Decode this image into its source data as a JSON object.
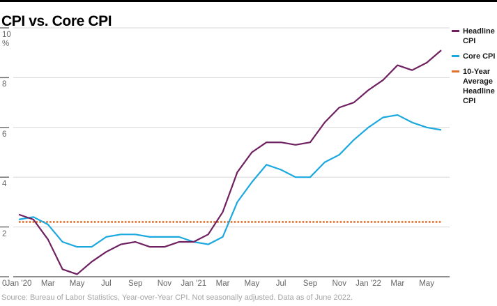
{
  "title": "CPI vs. Core CPI",
  "source": "Source: Bureau of Labor Statistics, Year-over-Year CPI. Not seasonally adjusted. Data as of June 2022.",
  "legend": {
    "items": [
      {
        "label": "Headline CPI",
        "color": "#6e2060"
      },
      {
        "label": "Core CPI",
        "color": "#1ba8df"
      },
      {
        "label": "10-Year Average Headline CPI",
        "color": "#e0702d"
      }
    ]
  },
  "chart_data": {
    "type": "line",
    "title": "CPI vs. Core CPI",
    "ylabel": "%",
    "ylim": [
      0,
      10
    ],
    "ytick_interval": 2,
    "ytick_labels": [
      "0",
      "2",
      "4",
      "6",
      "8",
      "10"
    ],
    "x_tick_labels": [
      "Jan '20",
      "Mar",
      "May",
      "Jul",
      "Sep",
      "Nov",
      "Jan '21",
      "Mar",
      "May",
      "Jul",
      "Sep",
      "Nov",
      "Jan '22",
      "Mar",
      "May"
    ],
    "months": [
      "Jan '20",
      "Feb",
      "Mar",
      "Apr",
      "May",
      "Jun",
      "Jul",
      "Aug",
      "Sep",
      "Oct",
      "Nov",
      "Dec",
      "Jan '21",
      "Feb",
      "Mar",
      "Apr",
      "May",
      "Jun",
      "Jul",
      "Aug",
      "Sep",
      "Oct",
      "Nov",
      "Dec",
      "Jan '22",
      "Feb",
      "Mar",
      "Apr",
      "May",
      "Jun"
    ],
    "series": [
      {
        "name": "Headline CPI",
        "color": "#6e2060",
        "values": [
          2.5,
          2.3,
          1.5,
          0.3,
          0.1,
          0.6,
          1.0,
          1.3,
          1.4,
          1.2,
          1.2,
          1.4,
          1.4,
          1.7,
          2.6,
          4.2,
          5.0,
          5.4,
          5.4,
          5.3,
          5.4,
          6.2,
          6.8,
          7.0,
          7.5,
          7.9,
          8.5,
          8.3,
          8.6,
          9.1
        ]
      },
      {
        "name": "Core CPI",
        "color": "#1ba8df",
        "values": [
          2.3,
          2.4,
          2.1,
          1.4,
          1.2,
          1.2,
          1.6,
          1.7,
          1.7,
          1.6,
          1.6,
          1.6,
          1.4,
          1.3,
          1.6,
          3.0,
          3.8,
          4.5,
          4.3,
          4.0,
          4.0,
          4.6,
          4.9,
          5.5,
          6.0,
          6.4,
          6.5,
          6.2,
          6.0,
          5.9
        ]
      }
    ],
    "reference_line": {
      "name": "10-Year Average Headline CPI",
      "value": 2.2,
      "color": "#e0702d",
      "style": "dotted"
    },
    "grid": true,
    "legend_position": "right",
    "colors": {
      "gridline": "#d7d7d7",
      "axis": "#686868",
      "tick_text": "#666666"
    }
  }
}
